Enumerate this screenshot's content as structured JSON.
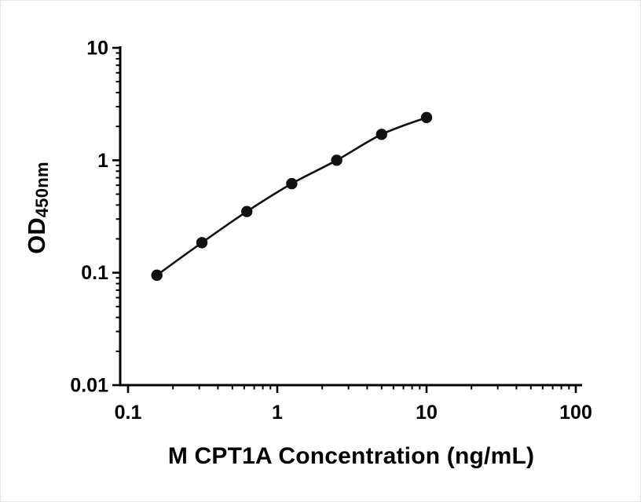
{
  "chart_data": {
    "type": "scatter",
    "subtype": "standard-curve-line-with-markers",
    "xlabel": "M CPT1A Concentration (ng/mL)",
    "ylabel_main": "OD",
    "ylabel_sub": "450nm",
    "x_scale": "log",
    "y_scale": "log",
    "xlim": [
      0.1,
      100
    ],
    "ylim": [
      0.01,
      10
    ],
    "grid": false,
    "legend": false,
    "background_color": "#ffffff",
    "axis_color": "#000000",
    "line_color": "#111111",
    "marker_color": "#111111",
    "x_ticks": [
      {
        "value": 0.1,
        "label": "0.1"
      },
      {
        "value": 1,
        "label": "1"
      },
      {
        "value": 10,
        "label": "10"
      },
      {
        "value": 100,
        "label": "100"
      }
    ],
    "y_ticks": [
      {
        "value": 0.01,
        "label": "0.01"
      },
      {
        "value": 0.1,
        "label": "0.1"
      },
      {
        "value": 1,
        "label": "1"
      },
      {
        "value": 10,
        "label": "10"
      }
    ],
    "points": [
      {
        "x": 0.156,
        "y": 0.095
      },
      {
        "x": 0.3125,
        "y": 0.185
      },
      {
        "x": 0.625,
        "y": 0.35
      },
      {
        "x": 1.25,
        "y": 0.62
      },
      {
        "x": 2.5,
        "y": 1.0
      },
      {
        "x": 5,
        "y": 1.7
      },
      {
        "x": 10,
        "y": 2.4
      }
    ]
  }
}
